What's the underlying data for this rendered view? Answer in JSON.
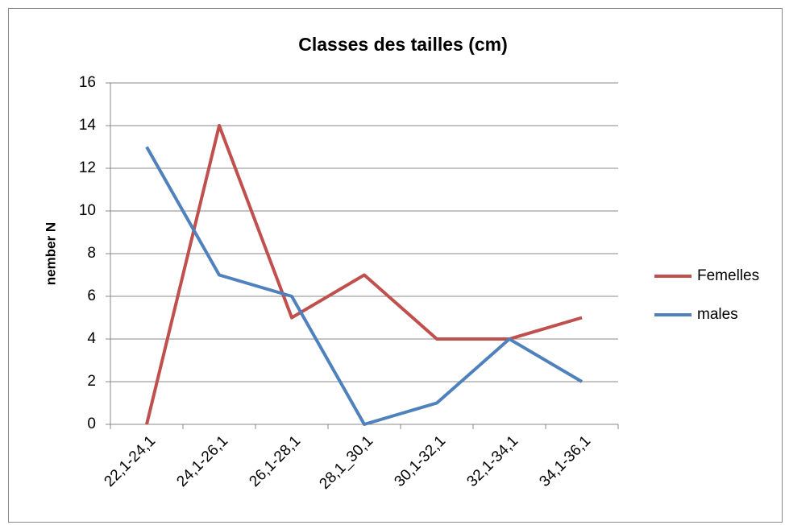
{
  "chart_data": {
    "type": "line",
    "title": "Classes des tailles (cm)",
    "y_label": "nember N",
    "categories": [
      "22,1-24,1",
      "24,1-26,1",
      "26,1-28,1",
      "28,1_30,1",
      "30,1-32,1",
      "32,1-34,1",
      "34,1-36,1"
    ],
    "series": [
      {
        "name": "Femelles",
        "color": "#c0504d",
        "values": [
          0,
          14,
          5,
          7,
          4,
          4,
          5
        ]
      },
      {
        "name": "males",
        "color": "#4f81bd",
        "values": [
          13,
          7,
          6,
          0,
          1,
          4,
          2
        ]
      }
    ],
    "ylim": [
      0,
      16
    ],
    "yticks": [
      0,
      2,
      4,
      6,
      8,
      10,
      12,
      14,
      16
    ],
    "grid": true,
    "legend": "right"
  }
}
